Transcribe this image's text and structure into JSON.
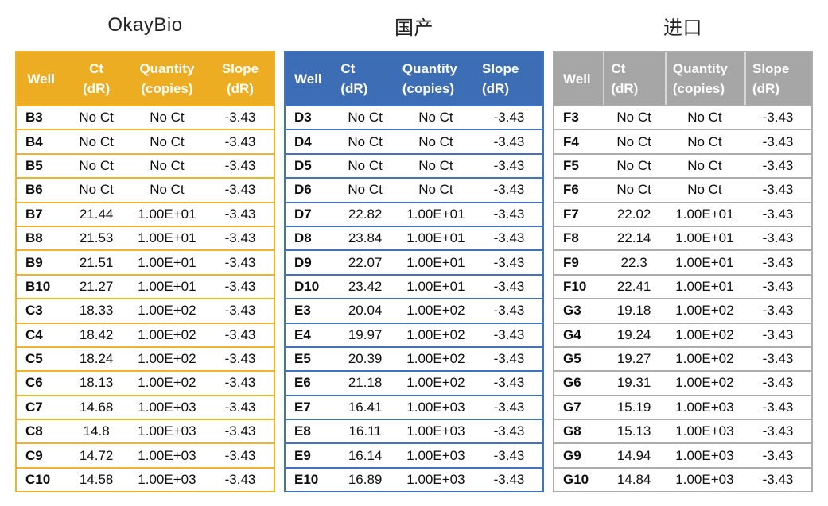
{
  "page": {
    "background": "#ffffff"
  },
  "columns": [
    {
      "line1": "Well",
      "line2": ""
    },
    {
      "line1": "Ct",
      "line2": "(dR)"
    },
    {
      "line1": "Quantity",
      "line2": "(copies)"
    },
    {
      "line1": "Slope",
      "line2": "(dR)"
    }
  ],
  "tables": [
    {
      "key": "okaybio",
      "title": "OkayBio",
      "header_color": "#EDAD22",
      "border_color": "#F2B32C",
      "header_align": "center",
      "header_dividers": false,
      "rows": [
        [
          "B3",
          "No Ct",
          "No Ct",
          "-3.43"
        ],
        [
          "B4",
          "No Ct",
          "No Ct",
          "-3.43"
        ],
        [
          "B5",
          "No Ct",
          "No Ct",
          "-3.43"
        ],
        [
          "B6",
          "No Ct",
          "No Ct",
          "-3.43"
        ],
        [
          "B7",
          "21.44",
          "1.00E+01",
          "-3.43"
        ],
        [
          "B8",
          "21.53",
          "1.00E+01",
          "-3.43"
        ],
        [
          "B9",
          "21.51",
          "1.00E+01",
          "-3.43"
        ],
        [
          "B10",
          "21.27",
          "1.00E+01",
          "-3.43"
        ],
        [
          "C3",
          "18.33",
          "1.00E+02",
          "-3.43"
        ],
        [
          "C4",
          "18.42",
          "1.00E+02",
          "-3.43"
        ],
        [
          "C5",
          "18.24",
          "1.00E+02",
          "-3.43"
        ],
        [
          "C6",
          "18.13",
          "1.00E+02",
          "-3.43"
        ],
        [
          "C7",
          "14.68",
          "1.00E+03",
          "-3.43"
        ],
        [
          "C8",
          "14.8",
          "1.00E+03",
          "-3.43"
        ],
        [
          "C9",
          "14.72",
          "1.00E+03",
          "-3.43"
        ],
        [
          "C10",
          "14.58",
          "1.00E+03",
          "-3.43"
        ]
      ]
    },
    {
      "key": "guochan",
      "title": "国产",
      "header_color": "#3D6DB5",
      "border_color": "#4274BE",
      "header_align": "left",
      "header_dividers": false,
      "rows": [
        [
          "D3",
          "No Ct",
          "No Ct",
          "-3.43"
        ],
        [
          "D4",
          "No Ct",
          "No Ct",
          "-3.43"
        ],
        [
          "D5",
          "No Ct",
          "No Ct",
          "-3.43"
        ],
        [
          "D6",
          "No Ct",
          "No Ct",
          "-3.43"
        ],
        [
          "D7",
          "22.82",
          "1.00E+01",
          "-3.43"
        ],
        [
          "D8",
          "23.84",
          "1.00E+01",
          "-3.43"
        ],
        [
          "D9",
          "22.07",
          "1.00E+01",
          "-3.43"
        ],
        [
          "D10",
          "23.42",
          "1.00E+01",
          "-3.43"
        ],
        [
          "E3",
          "20.04",
          "1.00E+02",
          "-3.43"
        ],
        [
          "E4",
          "19.97",
          "1.00E+02",
          "-3.43"
        ],
        [
          "E5",
          "20.39",
          "1.00E+02",
          "-3.43"
        ],
        [
          "E6",
          "21.18",
          "1.00E+02",
          "-3.43"
        ],
        [
          "E7",
          "16.41",
          "1.00E+03",
          "-3.43"
        ],
        [
          "E8",
          "16.11",
          "1.00E+03",
          "-3.43"
        ],
        [
          "E9",
          "16.14",
          "1.00E+03",
          "-3.43"
        ],
        [
          "E10",
          "16.89",
          "1.00E+03",
          "-3.43"
        ]
      ]
    },
    {
      "key": "jinkou",
      "title": "进口",
      "header_color": "#A6A6A6",
      "border_color": "#ADADAD",
      "header_align": "left",
      "header_dividers": true,
      "rows": [
        [
          "F3",
          "No Ct",
          "No Ct",
          "-3.43"
        ],
        [
          "F4",
          "No Ct",
          "No Ct",
          "-3.43"
        ],
        [
          "F5",
          "No Ct",
          "No Ct",
          "-3.43"
        ],
        [
          "F6",
          "No Ct",
          "No Ct",
          "-3.43"
        ],
        [
          "F7",
          "22.02",
          "1.00E+01",
          "-3.43"
        ],
        [
          "F8",
          "22.14",
          "1.00E+01",
          "-3.43"
        ],
        [
          "F9",
          "22.3",
          "1.00E+01",
          "-3.43"
        ],
        [
          "F10",
          "22.41",
          "1.00E+01",
          "-3.43"
        ],
        [
          "G3",
          "19.18",
          "1.00E+02",
          "-3.43"
        ],
        [
          "G4",
          "19.24",
          "1.00E+02",
          "-3.43"
        ],
        [
          "G5",
          "19.27",
          "1.00E+02",
          "-3.43"
        ],
        [
          "G6",
          "19.31",
          "1.00E+02",
          "-3.43"
        ],
        [
          "G7",
          "15.19",
          "1.00E+03",
          "-3.43"
        ],
        [
          "G8",
          "15.13",
          "1.00E+03",
          "-3.43"
        ],
        [
          "G9",
          "14.94",
          "1.00E+03",
          "-3.43"
        ],
        [
          "G10",
          "14.84",
          "1.00E+03",
          "-3.43"
        ]
      ]
    }
  ]
}
